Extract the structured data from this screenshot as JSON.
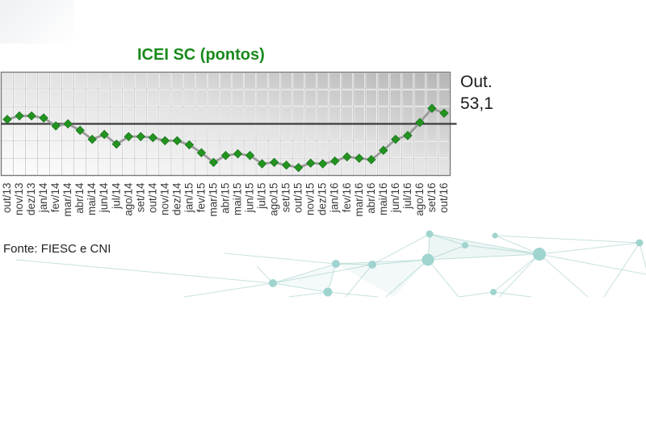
{
  "title": "ICEI SC (pontos)",
  "annotation": {
    "label": "Out.",
    "value": "53,1"
  },
  "source": "Fonte: FIESC e CNI",
  "colors": {
    "title_green": "#1a8a1c",
    "marker_green": "#23941f",
    "marker_edge": "#14701a",
    "series_line_gray": "#9b9b9b",
    "reference_line": "#3c3c3c",
    "axis_text": "#3a3a3a",
    "plot_border": "#7a7a7a",
    "plot_gradient_top_right": "#b4b4b4",
    "plot_gradient_bottom_left": "#fdfdfd",
    "decoration_teal": "#9fd4cf"
  },
  "chart_data": {
    "type": "line",
    "title": "ICEI SC (pontos)",
    "xlabel": "",
    "ylabel": "",
    "legend_position": "none",
    "grid": "on",
    "ylim": [
      35,
      65
    ],
    "gridline_step": 5,
    "reference_line": 50,
    "marker": "diamond",
    "last_point_annotation": "Out. 53,1",
    "categories": [
      "out/13",
      "nov/13",
      "dez/13",
      "jan/14",
      "fev/14",
      "mar/14",
      "abr/14",
      "mai/14",
      "jun/14",
      "jul/14",
      "ago/14",
      "set/14",
      "out/14",
      "nov/14",
      "dez/14",
      "jan/15",
      "fev/15",
      "mar/15",
      "abr/15",
      "mai/15",
      "jun/15",
      "jul/15",
      "ago/15",
      "set/15",
      "out/15",
      "nov/15",
      "dez/15",
      "jan/16",
      "fev/16",
      "mar/16",
      "abr/16",
      "mai/16",
      "jun/16",
      "jul/16",
      "ago/16",
      "set/16",
      "out/16"
    ],
    "series": [
      {
        "name": "ICEI SC",
        "values": [
          51.3,
          52.3,
          52.3,
          51.7,
          49.4,
          50.0,
          48.1,
          45.5,
          46.9,
          44.1,
          46.3,
          46.3,
          46.0,
          45.1,
          45.1,
          43.9,
          41.6,
          38.8,
          40.8,
          41.3,
          40.8,
          38.4,
          38.8,
          38.0,
          37.3,
          38.6,
          38.4,
          39.2,
          40.4,
          40.0,
          39.6,
          42.3,
          45.5,
          46.6,
          50.4,
          54.5,
          53.1
        ]
      }
    ]
  }
}
